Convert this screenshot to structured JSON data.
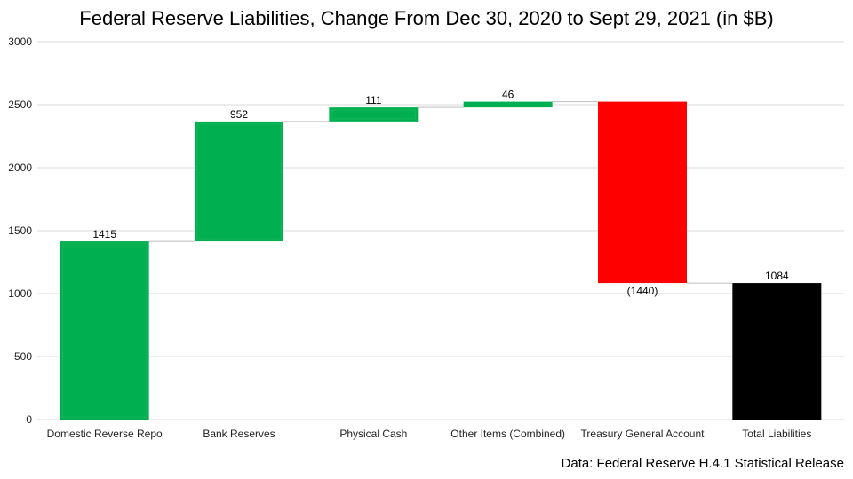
{
  "chart_data": {
    "type": "bar",
    "subtype": "waterfall",
    "title": "Federal Reserve Liabilities, Change From Dec 30, 2020 to Sept 29, 2021 (in $B)",
    "source": "Data: Federal Reserve H.4.1 Statistical Release",
    "ylim": [
      0,
      3000
    ],
    "yticks": [
      0,
      500,
      1000,
      1500,
      2000,
      2500,
      3000
    ],
    "grid": true,
    "categories": [
      "Domestic Reverse Repo",
      "Bank Reserves",
      "Physical Cash",
      "Other Items (Combined)",
      "Treasury General Account",
      "Total Liabilities"
    ],
    "values": [
      1415,
      952,
      111,
      46,
      -1440,
      1084
    ],
    "value_labels": [
      "1415",
      "952",
      "111",
      "46",
      "(1440)",
      "1084"
    ],
    "is_total": [
      false,
      false,
      false,
      false,
      false,
      true
    ],
    "colors": {
      "increase": "#00b050",
      "increase_inner": "#17b55a",
      "decrease": "#ff0000",
      "total": "#000000",
      "grid": "#d9d9d9",
      "connector": "#bfbfbf"
    }
  }
}
